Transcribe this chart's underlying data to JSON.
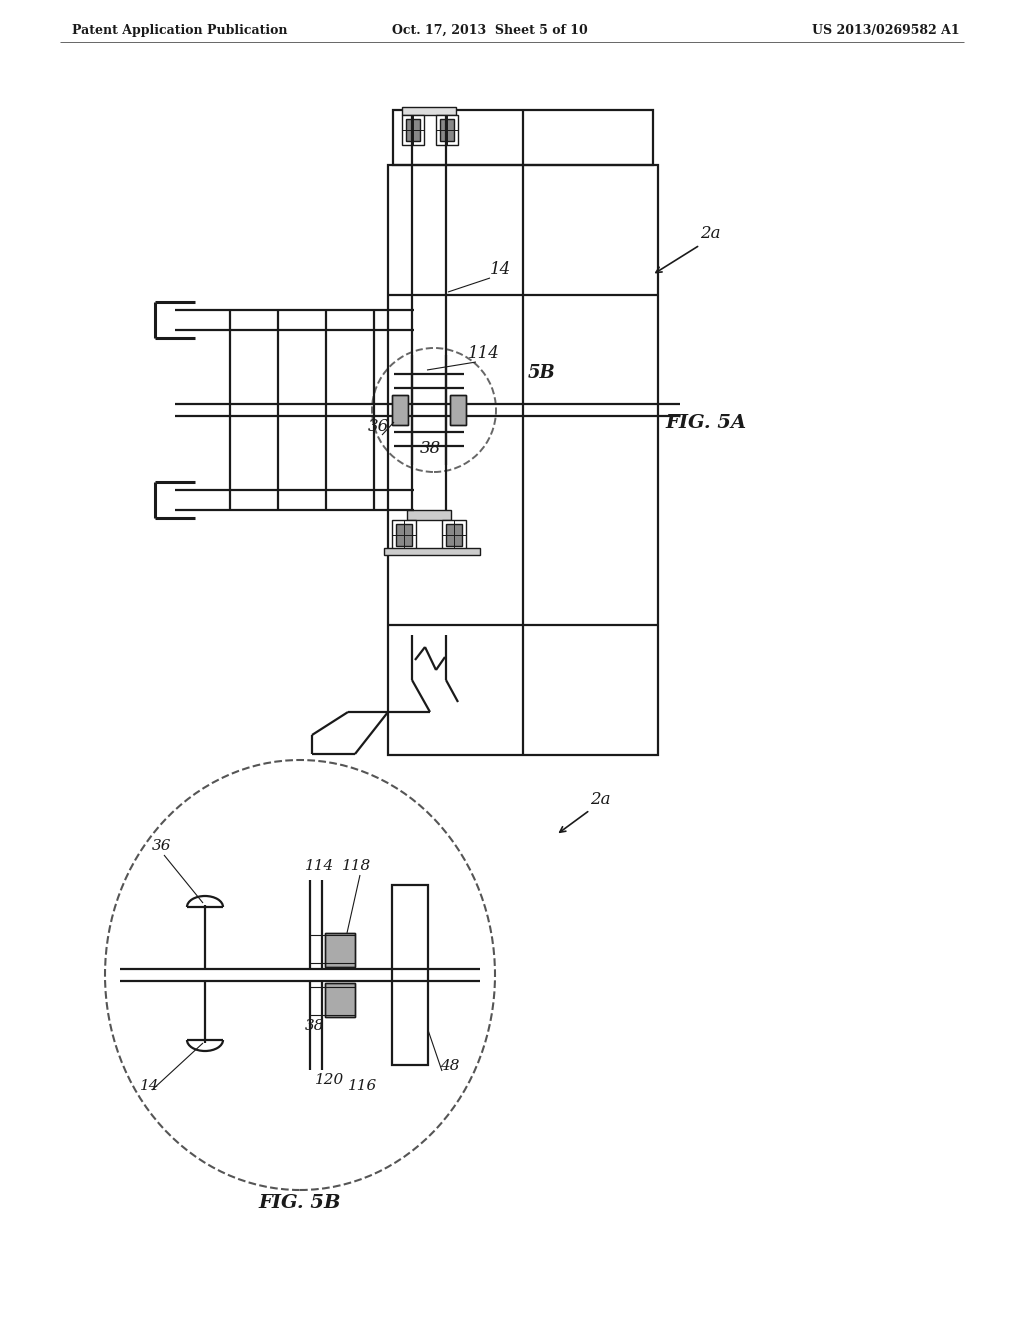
{
  "bg_color": "#ffffff",
  "header_left": "Patent Application Publication",
  "header_mid": "Oct. 17, 2013  Sheet 5 of 10",
  "header_right": "US 2013/0269582 A1",
  "fig5a_label": "FIG. 5A",
  "fig5b_label": "FIG. 5B",
  "lc": "#1a1a1a",
  "lw_main": 1.6,
  "lw_thick": 2.2,
  "lw_thin": 1.0
}
